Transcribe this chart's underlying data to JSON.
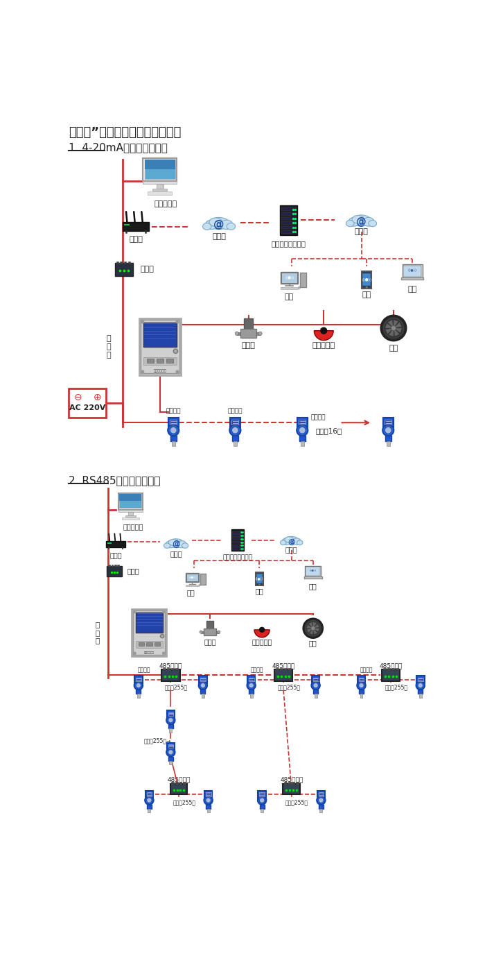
{
  "title": "机气猫”系列带显示固定式检测仪",
  "section1_title": "1. 4-20mA信号连接系统图",
  "section2_title": "2. RS485信号连接系统图",
  "bg_color": "#f5f5f5",
  "line_color": "#cc3333",
  "text_color": "#222222",
  "labels": {
    "single_pc": "单机版电脑",
    "router": "路由器",
    "internet": "互联网",
    "server": "安帕尔网络服务器",
    "converter": "转换器",
    "comm_line": "通\n讯\n线",
    "desktop": "电脑",
    "phone": "手机",
    "terminal": "终端",
    "solenoid": "电磁阀",
    "alarm": "声光报警器",
    "fan": "风机",
    "signal_out": "信号输出",
    "can_connect16": "可连接16个",
    "ac220v": "AC 220V",
    "rs485_hub": "485中继器",
    "can_connect255": "可连接255台",
    "signal_output": "信号输出"
  }
}
